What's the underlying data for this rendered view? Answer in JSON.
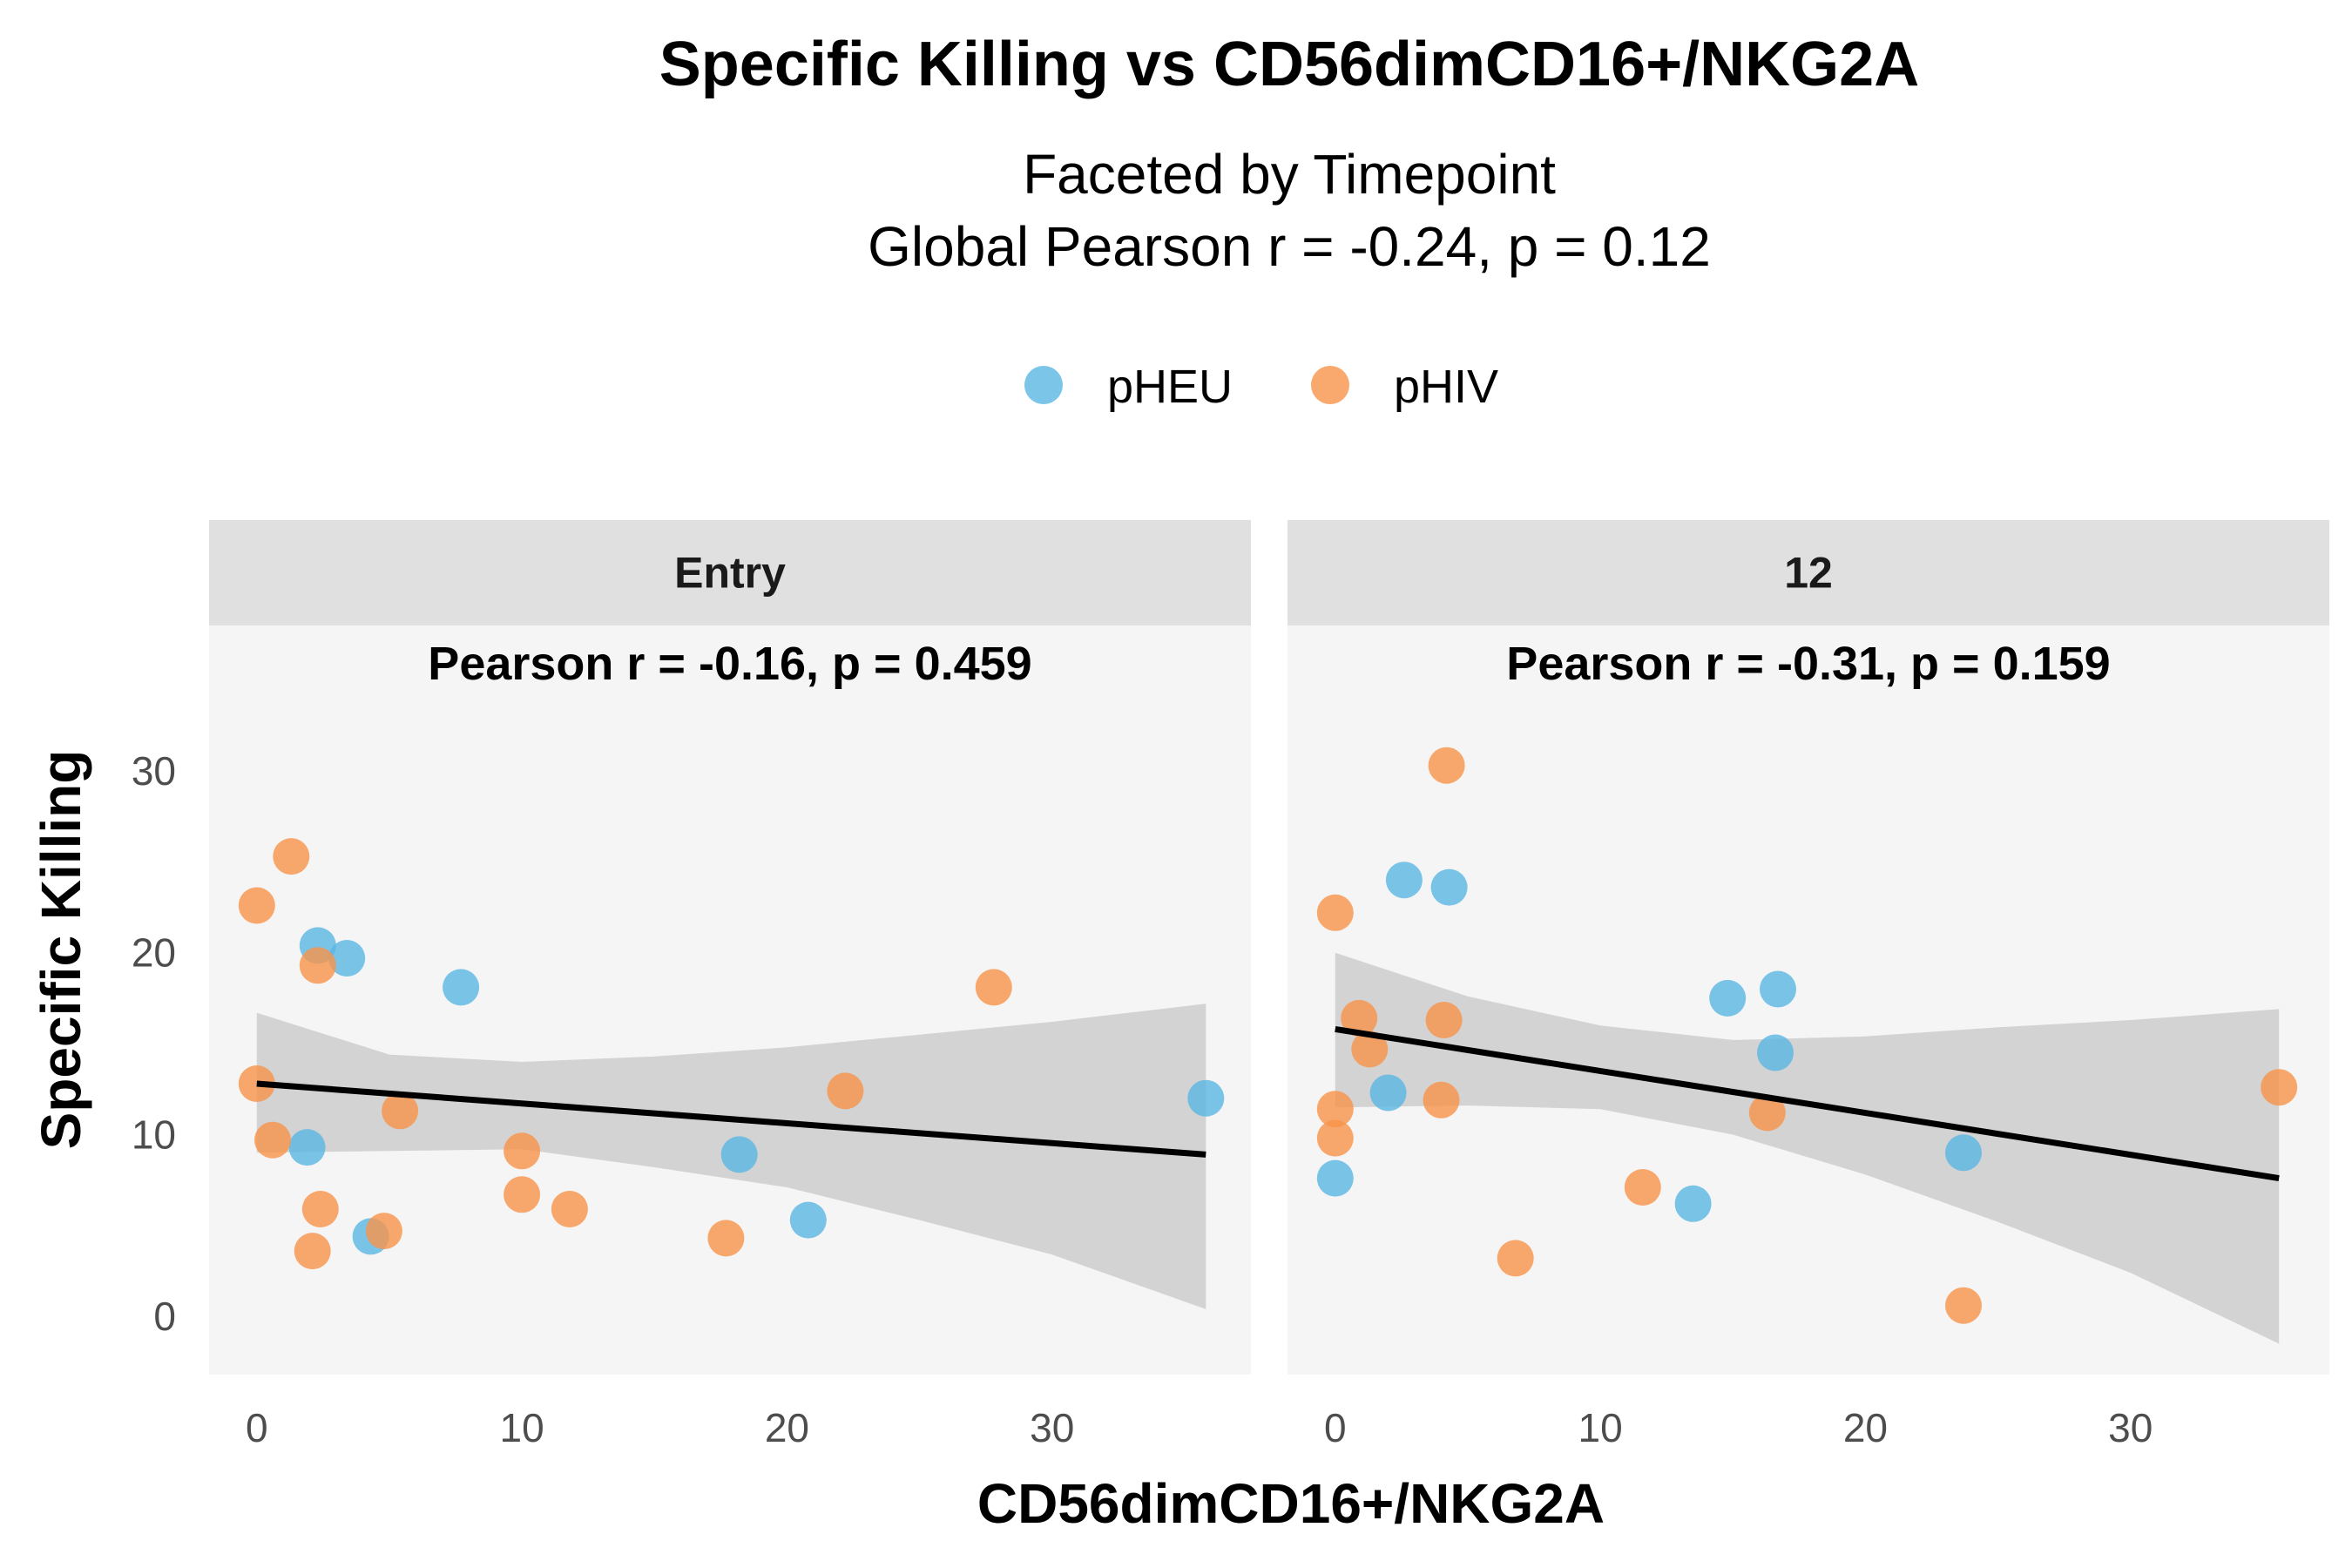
{
  "chart_data": {
    "type": "scatter",
    "title": "Specific Killing vs CD56dimCD16+/NKG2A",
    "subtitle_lines": [
      "Faceted by Timepoint",
      "Global Pearson r = -0.24, p = 0.12"
    ],
    "xlabel": "CD56dimCD16+/NKG2A",
    "ylabel": "Specific Killing",
    "xlim": [
      -1.8,
      37.5
    ],
    "ylim": [
      -3.2,
      38
    ],
    "x_ticks": [
      0,
      10,
      20,
      30
    ],
    "y_ticks": [
      0,
      10,
      20,
      30
    ],
    "grid": false,
    "legend_position": "top",
    "legend": [
      {
        "name": "pHEU",
        "color": "#5ab6e3"
      },
      {
        "name": "pHIV",
        "color": "#f7944a"
      }
    ],
    "fit_color": "#000000",
    "band_color": "#bdbdbd",
    "panel_background": "#f5f5f5",
    "strip_background": "#e0e0e0",
    "facets": [
      {
        "label": "Entry",
        "annotation": "Pearson r = -0.16, p = 0.459",
        "points": [
          {
            "x": 2.3,
            "y": 20.4,
            "group": "pHEU"
          },
          {
            "x": 3.4,
            "y": 19.7,
            "group": "pHEU"
          },
          {
            "x": 7.7,
            "y": 18.1,
            "group": "pHEU"
          },
          {
            "x": 1.9,
            "y": 9.3,
            "group": "pHEU"
          },
          {
            "x": 4.3,
            "y": 4.4,
            "group": "pHEU"
          },
          {
            "x": 18.2,
            "y": 8.9,
            "group": "pHEU"
          },
          {
            "x": 20.8,
            "y": 5.3,
            "group": "pHEU"
          },
          {
            "x": 35.8,
            "y": 12.0,
            "group": "pHEU"
          },
          {
            "x": 0.0,
            "y": 22.6,
            "group": "pHIV"
          },
          {
            "x": 1.3,
            "y": 25.3,
            "group": "pHIV"
          },
          {
            "x": 2.3,
            "y": 19.3,
            "group": "pHIV"
          },
          {
            "x": 0.0,
            "y": 12.8,
            "group": "pHIV"
          },
          {
            "x": 0.6,
            "y": 9.7,
            "group": "pHIV"
          },
          {
            "x": 5.4,
            "y": 11.3,
            "group": "pHIV"
          },
          {
            "x": 2.4,
            "y": 5.9,
            "group": "pHIV"
          },
          {
            "x": 2.1,
            "y": 3.6,
            "group": "pHIV"
          },
          {
            "x": 4.8,
            "y": 4.7,
            "group": "pHIV"
          },
          {
            "x": 10.0,
            "y": 9.1,
            "group": "pHIV"
          },
          {
            "x": 10.0,
            "y": 6.7,
            "group": "pHIV"
          },
          {
            "x": 11.8,
            "y": 5.9,
            "group": "pHIV"
          },
          {
            "x": 17.7,
            "y": 4.3,
            "group": "pHIV"
          },
          {
            "x": 22.2,
            "y": 12.4,
            "group": "pHIV"
          },
          {
            "x": 27.8,
            "y": 18.1,
            "group": "pHIV"
          }
        ],
        "fit": {
          "x": [
            0.0,
            35.8
          ],
          "y": [
            12.8,
            8.9
          ]
        },
        "band": {
          "x": [
            0,
            5,
            10,
            15,
            20,
            25,
            30,
            35.8
          ],
          "upper": [
            16.7,
            14.4,
            14.0,
            14.3,
            14.8,
            15.5,
            16.2,
            17.2
          ],
          "lower": [
            9.0,
            9.1,
            9.2,
            8.2,
            7.1,
            5.3,
            3.4,
            0.4
          ]
        }
      },
      {
        "label": "12",
        "annotation": "Pearson r = -0.31, p = 0.159",
        "points": [
          {
            "x": 2.6,
            "y": 24.0,
            "group": "pHEU"
          },
          {
            "x": 4.3,
            "y": 23.6,
            "group": "pHEU"
          },
          {
            "x": 14.8,
            "y": 17.5,
            "group": "pHEU"
          },
          {
            "x": 16.7,
            "y": 18.0,
            "group": "pHEU"
          },
          {
            "x": 16.6,
            "y": 14.5,
            "group": "pHEU"
          },
          {
            "x": 2.0,
            "y": 12.3,
            "group": "pHEU"
          },
          {
            "x": 0.0,
            "y": 7.6,
            "group": "pHEU"
          },
          {
            "x": 13.5,
            "y": 6.2,
            "group": "pHEU"
          },
          {
            "x": 23.7,
            "y": 9.0,
            "group": "pHEU"
          },
          {
            "x": 4.2,
            "y": 30.3,
            "group": "pHIV"
          },
          {
            "x": 0.0,
            "y": 22.2,
            "group": "pHIV"
          },
          {
            "x": 0.9,
            "y": 16.4,
            "group": "pHIV"
          },
          {
            "x": 4.1,
            "y": 16.3,
            "group": "pHIV"
          },
          {
            "x": 1.3,
            "y": 14.7,
            "group": "pHIV"
          },
          {
            "x": 0.0,
            "y": 11.4,
            "group": "pHIV"
          },
          {
            "x": 0.0,
            "y": 9.8,
            "group": "pHIV"
          },
          {
            "x": 4.0,
            "y": 11.9,
            "group": "pHIV"
          },
          {
            "x": 16.3,
            "y": 11.2,
            "group": "pHIV"
          },
          {
            "x": 11.6,
            "y": 7.1,
            "group": "pHIV"
          },
          {
            "x": 6.8,
            "y": 3.2,
            "group": "pHIV"
          },
          {
            "x": 23.7,
            "y": 0.6,
            "group": "pHIV"
          },
          {
            "x": 35.6,
            "y": 12.6,
            "group": "pHIV"
          }
        ],
        "fit": {
          "x": [
            0.0,
            35.6
          ],
          "y": [
            15.8,
            7.6
          ]
        },
        "band": {
          "x": [
            0,
            5,
            10,
            15,
            20,
            25,
            30,
            35.6
          ],
          "upper": [
            20.0,
            17.6,
            16.0,
            15.2,
            15.4,
            15.9,
            16.3,
            16.9
          ],
          "lower": [
            11.5,
            11.6,
            11.4,
            10.0,
            7.8,
            5.2,
            2.4,
            -1.5
          ]
        }
      }
    ]
  }
}
